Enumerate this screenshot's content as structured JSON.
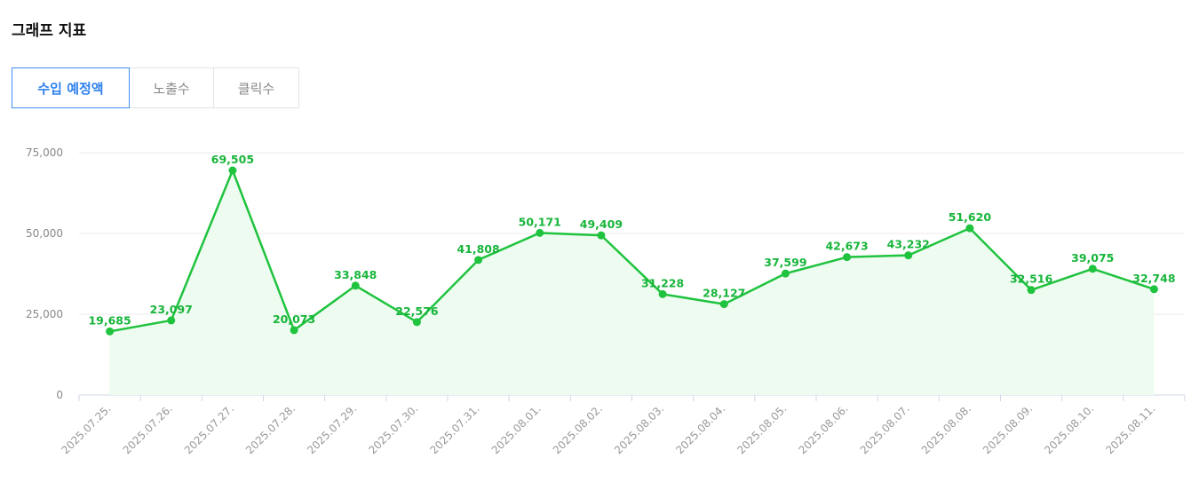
{
  "header": {
    "title": "그래프 지표"
  },
  "tabs": [
    {
      "label": "수입 예정액",
      "active": true
    },
    {
      "label": "노출수",
      "active": false
    },
    {
      "label": "클릭수",
      "active": false
    }
  ],
  "colors": {
    "accent": "#2f80ed",
    "line": "#1fc33e",
    "fill": "#eefbf0",
    "label": "#17b53a"
  },
  "chart_data": {
    "type": "area",
    "categories": [
      "2025.07.25.",
      "2025.07.26.",
      "2025.07.27.",
      "2025.07.28.",
      "2025.07.29.",
      "2025.07.30.",
      "2025.07.31.",
      "2025.08.01.",
      "2025.08.02.",
      "2025.08.03.",
      "2025.08.04.",
      "2025.08.05.",
      "2025.08.06.",
      "2025.08.07.",
      "2025.08.08.",
      "2025.08.09.",
      "2025.08.10.",
      "2025.08.11."
    ],
    "values": [
      19685,
      23097,
      69505,
      20073,
      33848,
      22576,
      41808,
      50171,
      49409,
      31228,
      28127,
      37599,
      42673,
      43232,
      51620,
      32516,
      39075,
      32748
    ],
    "value_labels": [
      "19,685",
      "23,097",
      "69,505",
      "20,073",
      "33,848",
      "22,576",
      "41,808",
      "50,171",
      "49,409",
      "31,228",
      "28,127",
      "37,599",
      "42,673",
      "43,232",
      "51,620",
      "32,516",
      "39,075",
      "32,748"
    ],
    "yticks": [
      0,
      25000,
      50000,
      75000
    ],
    "ytick_labels": [
      "0",
      "25,000",
      "50,000",
      "75,000"
    ],
    "ylim": [
      0,
      75000
    ],
    "grid": true,
    "legend": "none"
  }
}
